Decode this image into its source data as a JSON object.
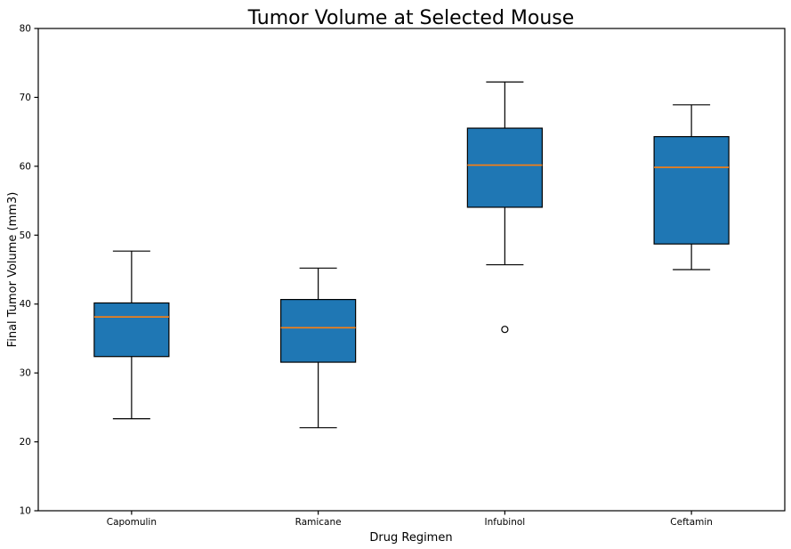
{
  "colors": {
    "box_fill": "#1f77b4",
    "median_line": "#ff7f0e",
    "line": "#000000",
    "background": "#ffffff"
  },
  "chart_data": {
    "type": "boxplot",
    "title": "Tumor Volume at Selected Mouse",
    "xlabel": "Drug Regimen",
    "ylabel": "Final Tumor Volume (mm3)",
    "categories": [
      "Capomulin",
      "Ramicane",
      "Infubinol",
      "Ceftamin"
    ],
    "ylim": [
      10,
      80
    ],
    "yticks": [
      10,
      20,
      30,
      40,
      50,
      60,
      70,
      80
    ],
    "grid": false,
    "legend": "none",
    "series": [
      {
        "name": "Capomulin",
        "whisker_low": 23.35,
        "q1": 32.38,
        "median": 38.13,
        "q3": 40.16,
        "whisker_high": 47.69,
        "outliers": []
      },
      {
        "name": "Ramicane",
        "whisker_low": 22.05,
        "q1": 31.56,
        "median": 36.56,
        "q3": 40.66,
        "whisker_high": 45.22,
        "outliers": []
      },
      {
        "name": "Infubinol",
        "whisker_low": 45.7,
        "q1": 54.05,
        "median": 60.17,
        "q3": 65.53,
        "whisker_high": 72.23,
        "outliers": [
          36.32
        ]
      },
      {
        "name": "Ceftamin",
        "whisker_low": 45.0,
        "q1": 48.72,
        "median": 59.85,
        "q3": 64.3,
        "whisker_high": 68.92,
        "outliers": []
      }
    ]
  }
}
